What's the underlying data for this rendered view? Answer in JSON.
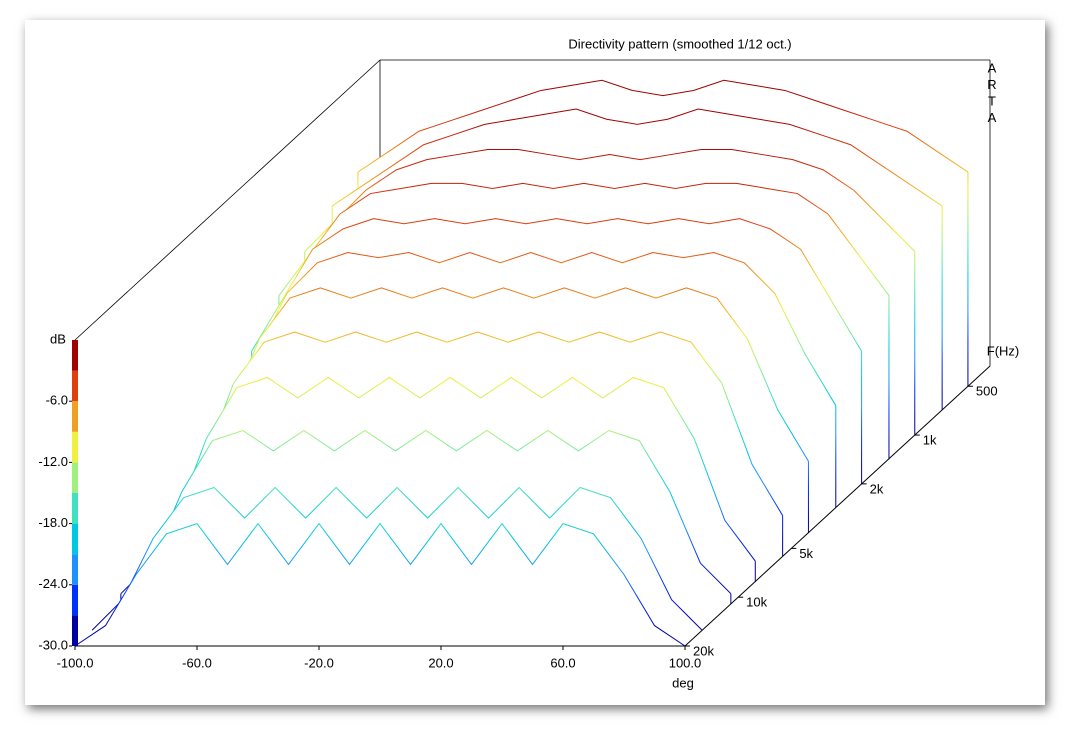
{
  "chart_data": {
    "type": "waterfall",
    "title": "Directivity pattern (smoothed 1/12 oct.)",
    "watermark": [
      "A",
      "R",
      "T",
      "A"
    ],
    "x_label": "deg",
    "y_label": "dB",
    "z_label": "F(Hz)",
    "xlim": [
      -100,
      100
    ],
    "xticks": [
      {
        "value": -100,
        "label": "-100.0"
      },
      {
        "value": -60,
        "label": "-60.0"
      },
      {
        "value": -20,
        "label": "-20.0"
      },
      {
        "value": 20,
        "label": "20.0"
      },
      {
        "value": 60,
        "label": "60.0"
      },
      {
        "value": 100,
        "label": "100.0"
      }
    ],
    "ylim": [
      -30,
      0
    ],
    "yticks": [
      {
        "value": -30,
        "label": "-30.0"
      },
      {
        "value": -24,
        "label": "-24.0"
      },
      {
        "value": -18,
        "label": "-18.0"
      },
      {
        "value": -12,
        "label": "-12.0"
      },
      {
        "value": -6,
        "label": "-6.0"
      }
    ],
    "zlim": [
      375,
      20000
    ],
    "z_scale": "log",
    "zticks": [
      500,
      {
        "value": 1000,
        "label": "1k"
      },
      {
        "value": 2000,
        "label": "2k"
      },
      {
        "value": 5000,
        "label": "5k"
      },
      {
        "value": 10000,
        "label": "10k"
      },
      {
        "value": 20000,
        "label": "20k"
      }
    ],
    "colormap": [
      "#0000a0",
      "#0030ff",
      "#1e90ff",
      "#00c8e0",
      "#40e0c0",
      "#a0f080",
      "#f0f040",
      "#f0a020",
      "#e04010",
      "#a00000"
    ],
    "x": [
      -100,
      -90,
      -80,
      -70,
      -60,
      -50,
      -40,
      -30,
      -20,
      -10,
      0,
      10,
      20,
      30,
      40,
      50,
      60,
      70,
      80,
      90,
      100
    ],
    "slices": [
      {
        "freq": 500,
        "values": [
          -9,
          -7,
          -5,
          -4,
          -3,
          -2,
          -1,
          -0.5,
          0,
          -1,
          -1.5,
          -1,
          0,
          -0.5,
          -1,
          -2,
          -3,
          -4,
          -5,
          -7,
          -9
        ]
      },
      {
        "freq": 700,
        "values": [
          -10,
          -8,
          -6,
          -4,
          -3,
          -2,
          -1.5,
          -1,
          -0.5,
          -1.5,
          -2,
          -1.5,
          -0.5,
          -1,
          -1.5,
          -2,
          -3,
          -4,
          -6,
          -8,
          -10
        ]
      },
      {
        "freq": 1000,
        "values": [
          -12,
          -9,
          -6,
          -4,
          -3,
          -2.5,
          -2,
          -2,
          -2.5,
          -3,
          -2.5,
          -3,
          -2.5,
          -2,
          -2,
          -2.5,
          -3,
          -4,
          -6,
          -9,
          -12
        ]
      },
      {
        "freq": 1400,
        "values": [
          -14,
          -10,
          -6,
          -4,
          -3.5,
          -3,
          -3,
          -3.5,
          -3,
          -3.5,
          -3,
          -3.5,
          -3,
          -3.5,
          -3,
          -3,
          -3.5,
          -4,
          -6,
          -10,
          -14
        ]
      },
      {
        "freq": 2000,
        "values": [
          -17,
          -12,
          -7,
          -5,
          -4,
          -4.5,
          -4,
          -4.5,
          -4,
          -4.5,
          -4,
          -4.5,
          -4,
          -4.5,
          -4,
          -4.5,
          -4,
          -5,
          -7,
          -12,
          -17
        ]
      },
      {
        "freq": 2800,
        "values": [
          -20,
          -15,
          -9,
          -6,
          -5,
          -5.5,
          -5,
          -6,
          -5,
          -6,
          -5,
          -6,
          -5,
          -6,
          -5,
          -5.5,
          -5,
          -6,
          -9,
          -15,
          -20
        ]
      },
      {
        "freq": 4000,
        "values": [
          -23,
          -18,
          -11,
          -7,
          -6,
          -7,
          -6,
          -7,
          -6,
          -7,
          -6,
          -7,
          -6,
          -7,
          -6,
          -7,
          -6,
          -7,
          -11,
          -18,
          -23
        ]
      },
      {
        "freq": 5600,
        "values": [
          -26,
          -21,
          -13,
          -9,
          -8,
          -9,
          -8,
          -9,
          -8,
          -9,
          -8,
          -9,
          -8,
          -9,
          -8,
          -9,
          -8,
          -9,
          -13,
          -21,
          -26
        ]
      },
      {
        "freq": 8000,
        "values": [
          -28,
          -24,
          -16,
          -11,
          -10,
          -12,
          -10,
          -12,
          -10,
          -12,
          -10,
          -12,
          -10,
          -12,
          -10,
          -12,
          -10,
          -11,
          -16,
          -24,
          -28
        ]
      },
      {
        "freq": 11000,
        "values": [
          -29,
          -26,
          -19,
          -14,
          -13,
          -15,
          -13,
          -15,
          -13,
          -15,
          -13,
          -15,
          -13,
          -15,
          -13,
          -15,
          -13,
          -14,
          -19,
          -26,
          -29
        ]
      },
      {
        "freq": 16000,
        "values": [
          -30,
          -27,
          -21,
          -17,
          -16,
          -19,
          -16,
          -19,
          -16,
          -19,
          -16,
          -19,
          -16,
          -19,
          -16,
          -19,
          -16,
          -17,
          -21,
          -27,
          -30
        ]
      },
      {
        "freq": 20000,
        "values": [
          -30,
          -28,
          -23,
          -19,
          -18,
          -22,
          -18,
          -22,
          -18,
          -22,
          -18,
          -22,
          -18,
          -22,
          -18,
          -22,
          -18,
          -19,
          -23,
          -28,
          -30
        ]
      }
    ]
  }
}
